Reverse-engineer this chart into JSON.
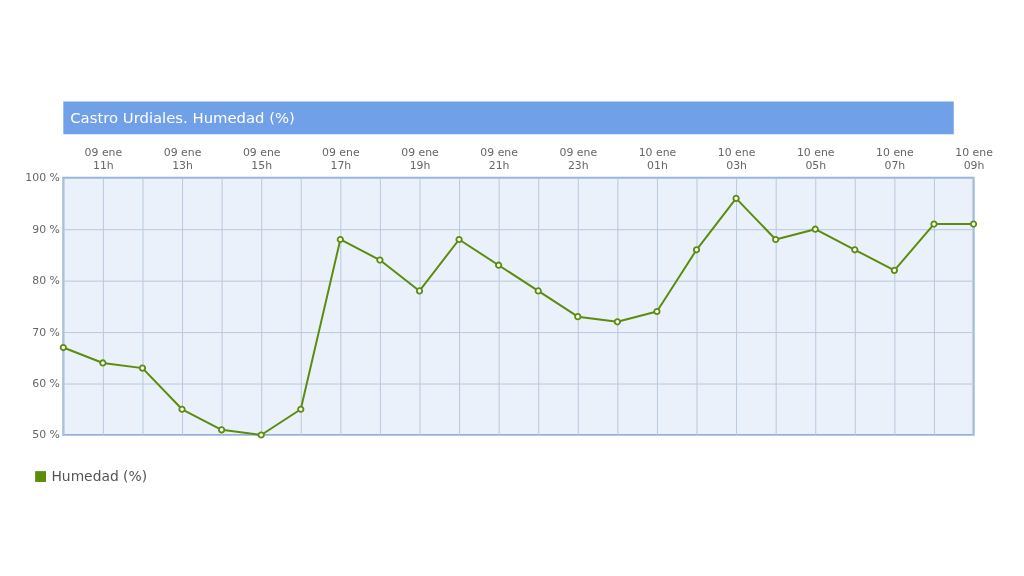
{
  "chart_data": {
    "type": "line",
    "title": "Castro Urdiales. Humedad (%)",
    "categories": [
      null,
      "09 ene 11h",
      null,
      "09 ene 13h",
      null,
      "09 ene 15h",
      null,
      "09 ene 17h",
      null,
      "09 ene 19h",
      null,
      "09 ene 21h",
      null,
      "09 ene 23h",
      null,
      "10 ene 01h",
      null,
      "10 ene 03h",
      null,
      "10 ene 05h",
      null,
      "10 ene 07h",
      null,
      "10 ene 09h"
    ],
    "series": [
      {
        "name": "Humedad (%)",
        "color": "#5b8c0c",
        "values": [
          67,
          64,
          63,
          55,
          51,
          50,
          55,
          88,
          84,
          78,
          88,
          83,
          78,
          73,
          72,
          74,
          86,
          96,
          88,
          90,
          86,
          82,
          91,
          91
        ]
      }
    ],
    "ylim": [
      50,
      100
    ],
    "yticks": [
      {
        "value": 50,
        "label": "50 %"
      },
      {
        "value": 60,
        "label": "60 %"
      },
      {
        "value": 70,
        "label": "70 %"
      },
      {
        "value": 80,
        "label": "80 %"
      },
      {
        "value": 90,
        "label": "90 %"
      },
      {
        "value": 100,
        "label": "100 %"
      }
    ],
    "grid": true,
    "legend": "bottom left",
    "marker": "circle",
    "line_style": "solid"
  }
}
